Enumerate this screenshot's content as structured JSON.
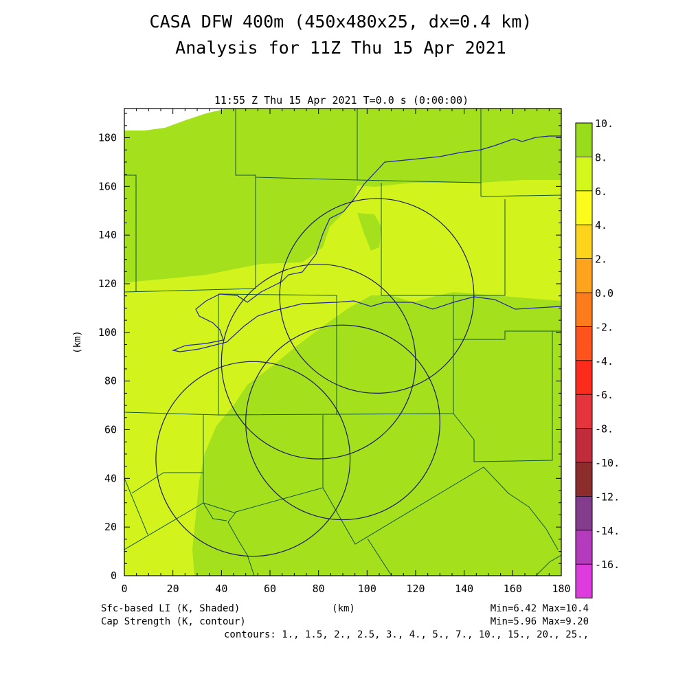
{
  "header": {
    "title_line1": "CASA DFW 400m (450x480x25, dx=0.4 km)",
    "title_line2": "Analysis for 11Z Thu 15 Apr 2021",
    "timestamp": "11:55 Z Thu 15 Apr 2021   T=0.0 s (0:00:00)"
  },
  "axes": {
    "x_label": "(km)",
    "y_label": "(km)",
    "x_range": [
      0,
      180
    ],
    "y_range": [
      0,
      192
    ],
    "x_ticks": [
      "0",
      "20",
      "40",
      "60",
      "80",
      "100",
      "120",
      "140",
      "160",
      "180"
    ],
    "y_ticks": [
      "0",
      "20",
      "40",
      "60",
      "80",
      "100",
      "120",
      "140",
      "160",
      "180"
    ]
  },
  "footer": {
    "shaded_label": "Sfc-based LI (K, Shaded)",
    "contour_label": "Cap Strength (K, contour)",
    "shaded_range": "Min=6.42 Max=10.4",
    "contour_range": "Min=5.96 Max=9.20",
    "contours": "contours: 1., 1.5, 2., 2.5, 3., 4., 5., 7., 10., 15., 20., 25.,"
  },
  "colorbar": {
    "labels": [
      "10.",
      "8.",
      "6.",
      "4.",
      "2.",
      "0.0",
      "-2.",
      "-4.",
      "-6.",
      "-8.",
      "-10.",
      "-12.",
      "-14.",
      "-16."
    ],
    "colors": [
      "#98dc1c",
      "#d4f81c",
      "#fcfc1c",
      "#fcd41c",
      "#fca41c",
      "#fc7c1c",
      "#fc541c",
      "#fc2c1c",
      "#e4343c",
      "#c02c3c",
      "#8c2c2c",
      "#843c8c",
      "#b43cbc",
      "#dc3cdc"
    ]
  },
  "map_colors": {
    "green": "#a5e01c",
    "yellowgreen": "#d2f41c",
    "county_lines": "#115544",
    "river_line": "#2222aa",
    "radar_rings": "#1a1a66"
  },
  "chart_data": {
    "type": "heatmap",
    "title": "CASA DFW 400m (450x480x25, dx=0.4 km)",
    "subtitle": "Analysis for 11Z Thu 15 Apr 2021",
    "xlabel": "(km)",
    "ylabel": "(km)",
    "xlim": [
      0,
      180
    ],
    "ylim": [
      0,
      192
    ],
    "shaded_field": "Sfc-based LI (K, Shaded)",
    "shaded_min": 6.42,
    "shaded_max": 10.4,
    "contour_field": "Cap Strength (K, contour)",
    "contour_min": 5.96,
    "contour_max": 9.2,
    "contour_levels": [
      1,
      1.5,
      2,
      2.5,
      3,
      4,
      5,
      7,
      10,
      15,
      20,
      25
    ],
    "colorbar_levels": [
      10,
      8,
      6,
      4,
      2,
      0,
      -2,
      -4,
      -6,
      -8,
      -10,
      -12,
      -14,
      -16
    ],
    "radar_rings": [
      {
        "center_x": 53,
        "center_y": 48,
        "radius": 40
      },
      {
        "center_x": 80,
        "center_y": 88,
        "radius": 40
      },
      {
        "center_x": 104,
        "center_y": 115,
        "radius": 40
      },
      {
        "center_x": 90,
        "center_y": 63,
        "radius": 40
      }
    ]
  }
}
